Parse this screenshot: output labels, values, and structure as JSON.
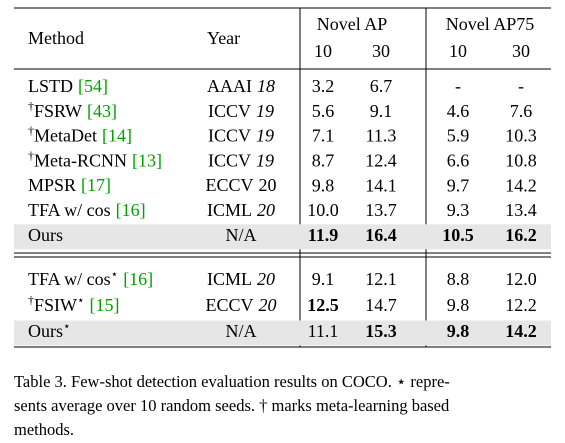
{
  "table": {
    "header": {
      "method": "Method",
      "year": "Year",
      "groups": [
        {
          "title": "Novel AP",
          "columns": [
            "10",
            "30"
          ]
        },
        {
          "title": "Novel AP75",
          "columns": [
            "10",
            "30"
          ]
        }
      ]
    },
    "sections": [
      {
        "rows": [
          {
            "method": "LSTD",
            "ref": "[54]",
            "venue": "AAAI",
            "year": "18",
            "values": [
              "3.2",
              "6.7",
              "-",
              "-"
            ]
          },
          {
            "prefix": "†",
            "method": "FSRW",
            "ref": "[43]",
            "venue": "ICCV",
            "year": "19",
            "values": [
              "5.6",
              "9.1",
              "4.6",
              "7.6"
            ]
          },
          {
            "prefix": "†",
            "method": "MetaDet",
            "ref": "[14]",
            "venue": "ICCV",
            "year": "19",
            "values": [
              "7.1",
              "11.3",
              "5.9",
              "10.3"
            ]
          },
          {
            "prefix": "†",
            "method": "Meta-RCNN",
            "ref": "[13]",
            "venue": "ICCV",
            "year": "19",
            "values": [
              "8.7",
              "12.4",
              "6.6",
              "10.8"
            ]
          },
          {
            "method": "MPSR",
            "ref": "[17]",
            "venue": "ECCV",
            "year": "20",
            "year_italic": false,
            "values": [
              "9.8",
              "14.1",
              "9.7",
              "14.2"
            ]
          },
          {
            "method": "TFA w/ cos",
            "ref": "[16]",
            "venue": "ICML",
            "year": "20",
            "values": [
              "10.0",
              "13.7",
              "9.3",
              "13.4"
            ]
          },
          {
            "method": "Ours",
            "venue": "N/A",
            "values": [
              "11.9",
              "16.4",
              "10.5",
              "16.2"
            ],
            "bold": [
              0,
              1,
              2,
              3
            ],
            "highlight": true
          }
        ]
      },
      {
        "rows": [
          {
            "method": "TFA w/ cos",
            "suffix": "⋆",
            "ref": "[16]",
            "venue": "ICML",
            "year": "20",
            "values": [
              "9.1",
              "12.1",
              "8.8",
              "12.0"
            ]
          },
          {
            "prefix": "†",
            "method": "FSIW",
            "suffix": "⋆",
            "ref": "[15]",
            "venue": "ECCV",
            "year": "20",
            "values": [
              "12.5",
              "14.7",
              "9.8",
              "12.2"
            ],
            "bold": [
              0
            ]
          },
          {
            "method": "Ours",
            "suffix": "⋆",
            "venue": "N/A",
            "values": [
              "11.1",
              "15.3",
              "9.8",
              "14.2"
            ],
            "bold": [
              1,
              2,
              3
            ],
            "highlight": true
          }
        ]
      }
    ]
  },
  "caption": [
    "Table 3. Few-shot detection evaluation results on COCO. ⋆ repre-",
    "sents average over 10 random seeds. † marks meta-learning based",
    "methods."
  ]
}
